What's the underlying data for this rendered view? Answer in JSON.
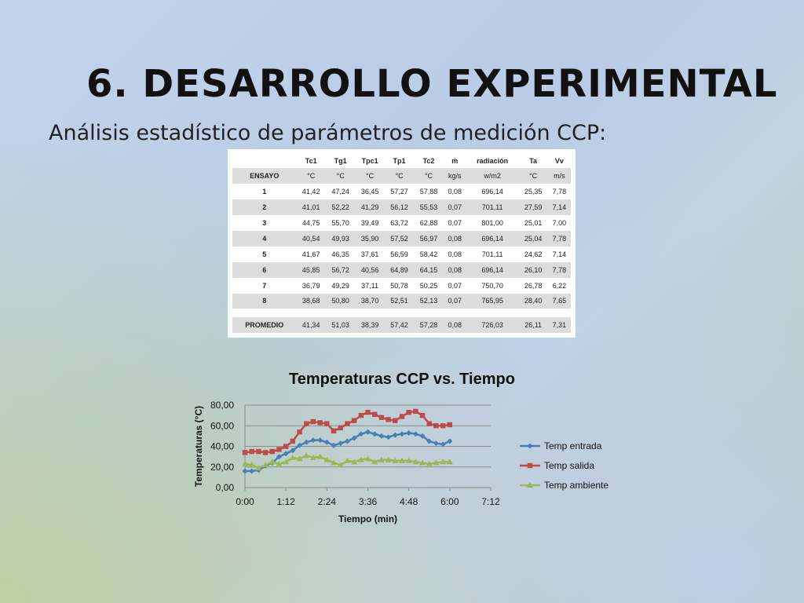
{
  "slide": {
    "title": "6. DESARROLLO EXPERIMENTAL",
    "subtitle": "Análisis estadístico de parámetros de medición CCP:"
  },
  "table": {
    "headers": [
      "",
      "Tc1",
      "Tg1",
      "Tpc1",
      "Tp1",
      "Tc2",
      "ṁ",
      "radiación",
      "Ta",
      "Vv"
    ],
    "units": [
      "ENSAYO",
      "°C",
      "°C",
      "°C",
      "°C",
      "°C",
      "kg/s",
      "w/m2",
      "°C",
      "m/s"
    ],
    "rows": [
      [
        "1",
        "41,42",
        "47,24",
        "36,45",
        "57,27",
        "57,88",
        "0,08",
        "696,14",
        "25,35",
        "7,78"
      ],
      [
        "2",
        "41,01",
        "52,22",
        "41,29",
        "56,12",
        "55,53",
        "0,07",
        "701,11",
        "27,59",
        "7,14"
      ],
      [
        "3",
        "44,75",
        "55,70",
        "39,49",
        "63,72",
        "62,88",
        "0,07",
        "801,00",
        "25,01",
        "7,00"
      ],
      [
        "4",
        "40,54",
        "49,93",
        "35,90",
        "57,52",
        "56,97",
        "0,08",
        "696,14",
        "25,04",
        "7,78"
      ],
      [
        "5",
        "41,67",
        "46,35",
        "37,61",
        "56,59",
        "58,42",
        "0,08",
        "701,11",
        "24,62",
        "7,14"
      ],
      [
        "6",
        "45,85",
        "56,72",
        "40,56",
        "64,89",
        "64,15",
        "0,08",
        "696,14",
        "26,10",
        "7,78"
      ],
      [
        "7",
        "36,79",
        "49,29",
        "37,11",
        "50,78",
        "50,25",
        "0,07",
        "750,70",
        "26,78",
        "6,22"
      ],
      [
        "8",
        "38,68",
        "50,80",
        "38,70",
        "52,51",
        "52,13",
        "0,07",
        "765,95",
        "28,40",
        "7,65"
      ]
    ],
    "average": [
      "PROMEDIO",
      "41,34",
      "51,03",
      "38,39",
      "57,42",
      "57,28",
      "0,08",
      "726,03",
      "26,11",
      "7,31"
    ]
  },
  "chart_data": {
    "type": "line",
    "title": "Temperaturas CCP vs. Tiempo",
    "xlabel": "Tiempo (min)",
    "ylabel": "Temperaturas (°C)",
    "x_unit": "minutes",
    "xlim": [
      0,
      432
    ],
    "ylim": [
      0,
      80
    ],
    "x_ticks": [
      "0:00",
      "1:12",
      "2:24",
      "3:36",
      "4:48",
      "6:00",
      "7:12"
    ],
    "y_ticks": [
      "0,00",
      "20,00",
      "40,00",
      "60,00",
      "80,00"
    ],
    "grid": true,
    "legend_position": "right",
    "x": [
      0,
      12,
      24,
      36,
      48,
      60,
      72,
      84,
      96,
      108,
      120,
      132,
      144,
      156,
      168,
      180,
      192,
      204,
      216,
      228,
      240,
      252,
      264,
      276,
      288,
      300,
      312,
      324,
      336,
      348,
      360
    ],
    "series": [
      {
        "name": "Temp entrada",
        "color": "#4a7ebb",
        "values": [
          16,
          16,
          17,
          21,
          24,
          30,
          33,
          36,
          41,
          44,
          46,
          46,
          44,
          41,
          43,
          45,
          48,
          52,
          54,
          52,
          50,
          49,
          51,
          52,
          53,
          52,
          50,
          45,
          43,
          42,
          45
        ]
      },
      {
        "name": "Temp salida",
        "color": "#be4b48",
        "values": [
          34,
          35,
          35,
          34,
          35,
          37,
          40,
          45,
          54,
          62,
          64,
          63,
          62,
          55,
          58,
          62,
          65,
          70,
          73,
          71,
          68,
          66,
          65,
          69,
          73,
          74,
          70,
          62,
          60,
          60,
          61
        ]
      },
      {
        "name": "Temp ambiente",
        "color": "#98b954",
        "values": [
          23,
          22,
          19,
          22,
          25,
          23,
          25,
          29,
          28,
          31,
          29,
          30,
          27,
          24,
          22,
          26,
          25,
          27,
          28,
          25,
          27,
          27,
          26,
          26,
          26,
          25,
          24,
          23,
          24,
          25,
          25
        ]
      }
    ]
  }
}
